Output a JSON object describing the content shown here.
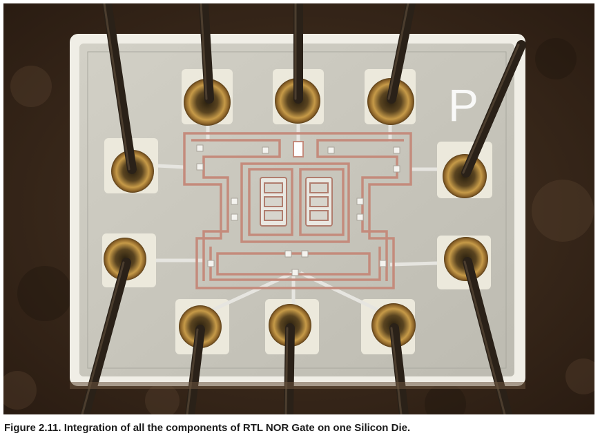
{
  "figure": {
    "caption": "Figure 2.11. Integration of all the components of RTL NOR Gate on one Silicon Die.",
    "die_marking": "P",
    "bond_pad_count": 10,
    "colors": {
      "package_background": "#3a2a1c",
      "die_surface": "#c9c7bd",
      "die_border": "#f3f1ea",
      "bond_pad": "#ece9dc",
      "bond_ring": "#b88a3a",
      "bond_center": "#3a2c16",
      "lead_wire": "#2a2118",
      "metal_trace": "#c08a7a",
      "trace_highlight": "#e0e0dd"
    }
  }
}
